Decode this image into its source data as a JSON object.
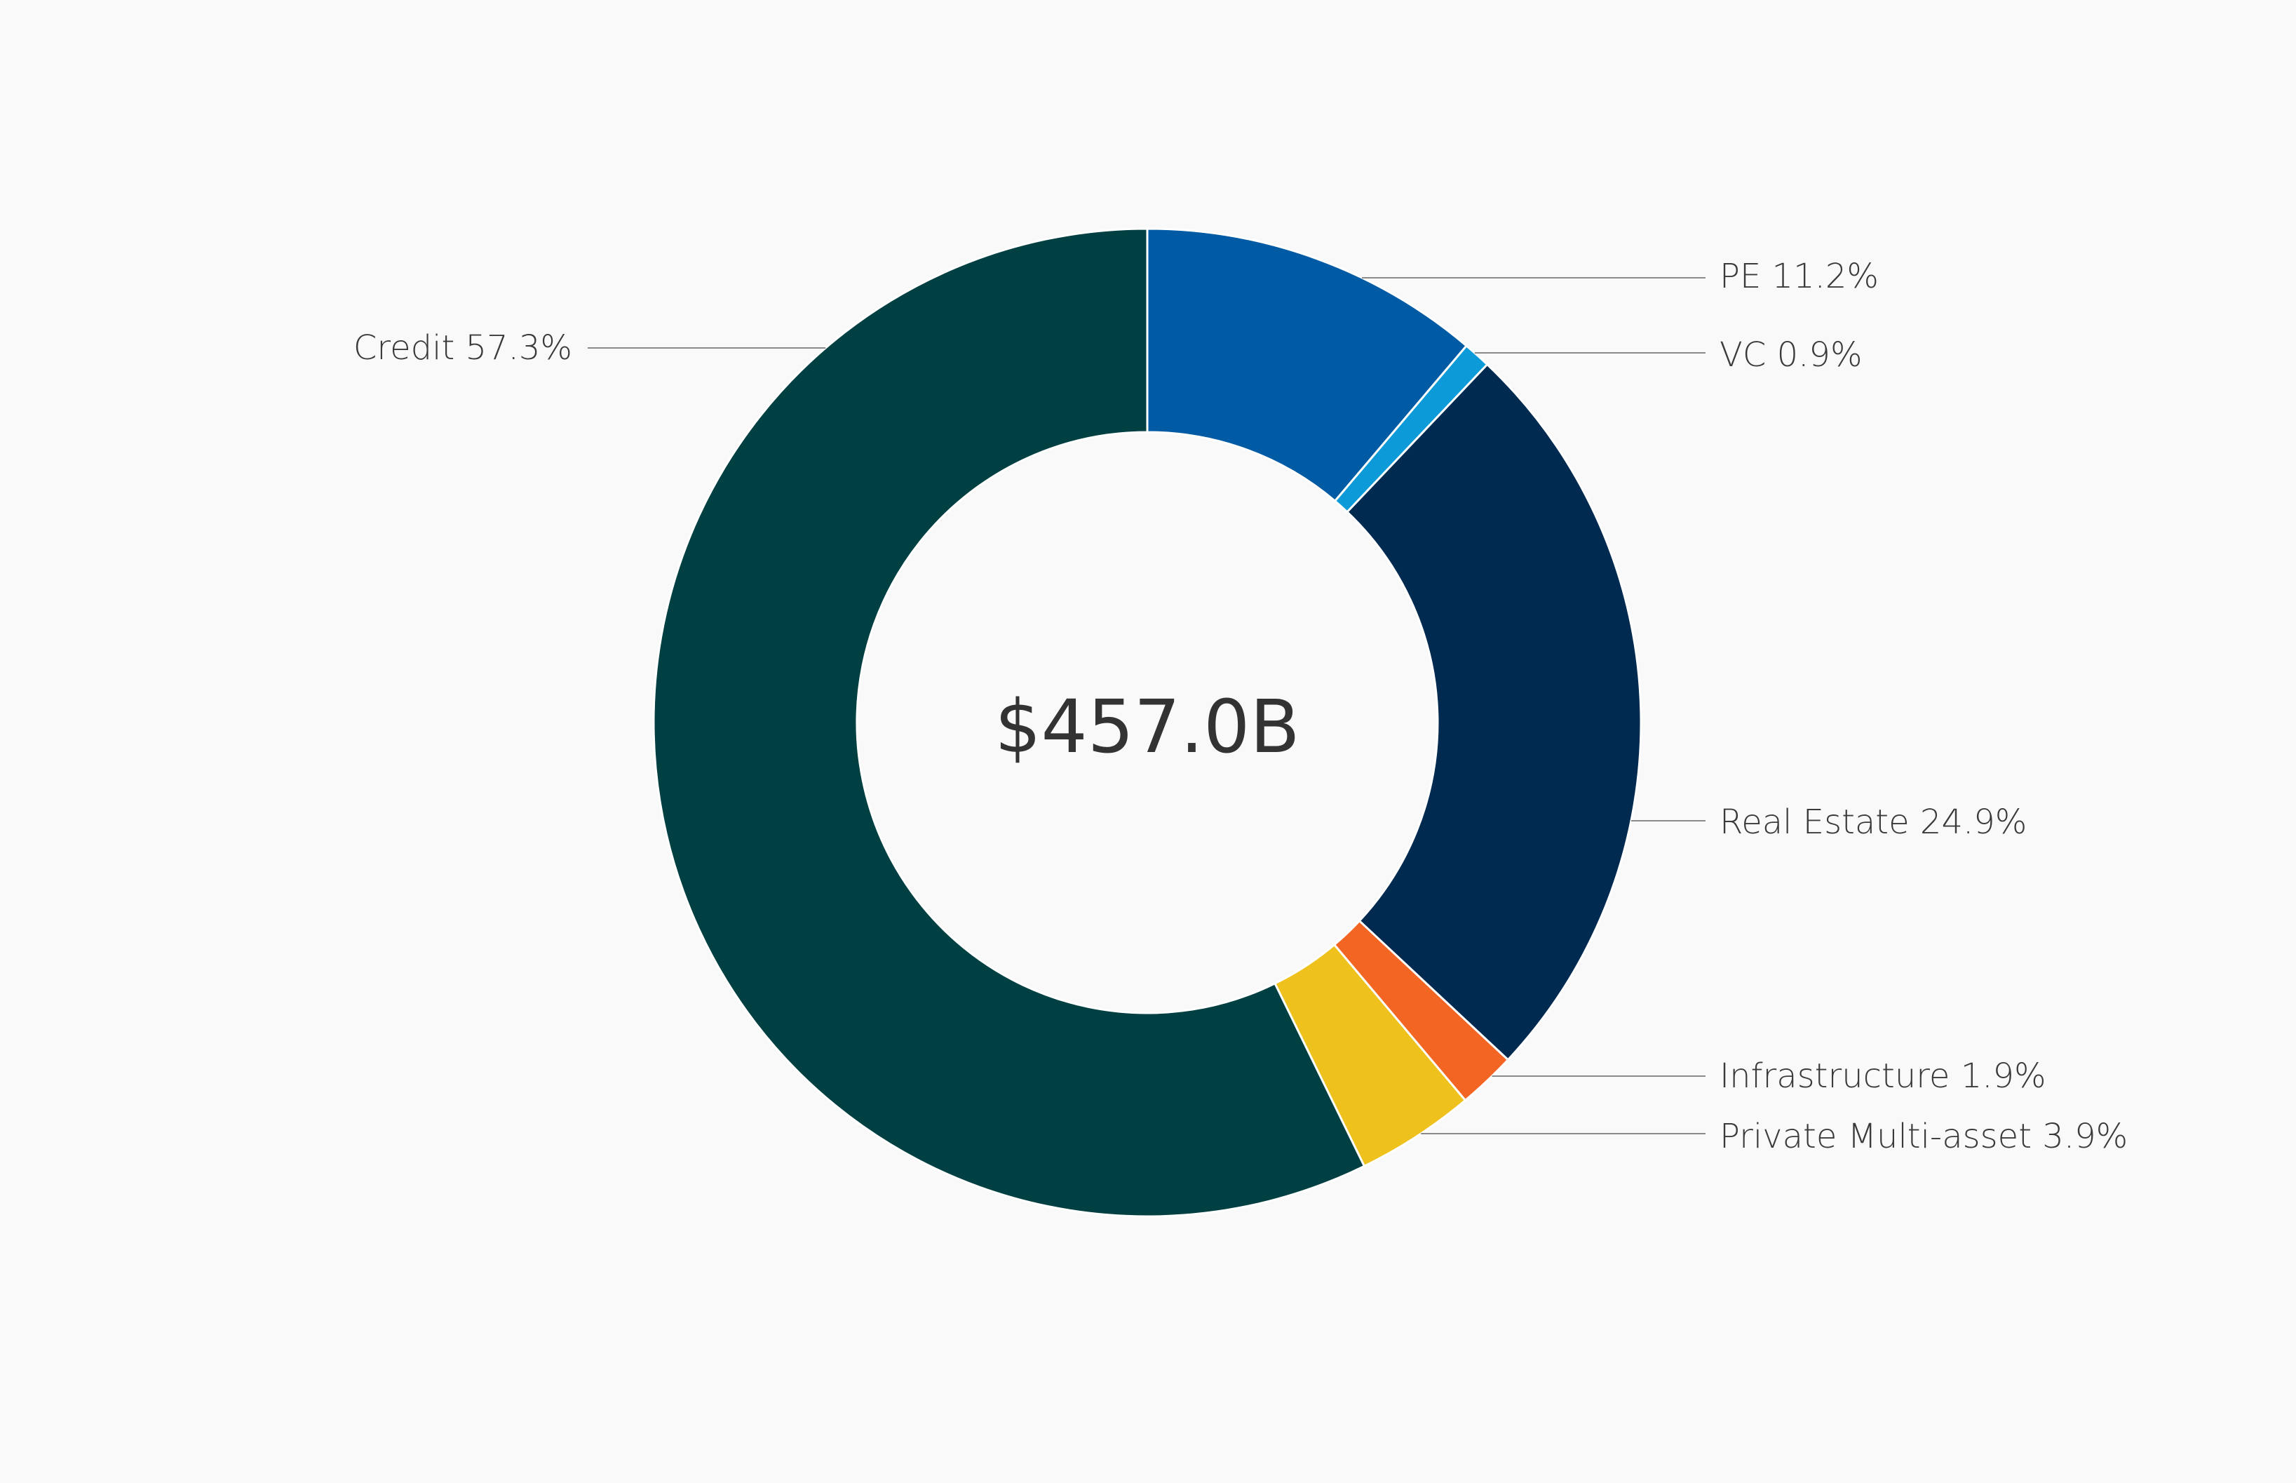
{
  "chart_data": {
    "type": "pie",
    "variant": "donut",
    "center_label": "$457.0B",
    "start_angle": "12 o'clock",
    "direction": "clockwise",
    "slices": [
      {
        "name": "PE",
        "label": "PE 11.2%",
        "value": 11.2,
        "color": "#005ba4"
      },
      {
        "name": "VC",
        "label": "VC 0.9%",
        "value": 0.9,
        "color": "#0c9ad9"
      },
      {
        "name": "Real Estate",
        "label": "Real Estate 24.9%",
        "value": 24.9,
        "color": "#002a50"
      },
      {
        "name": "Infrastructure",
        "label": "Infrastructure 1.9%",
        "value": 1.9,
        "color": "#f26522"
      },
      {
        "name": "Private Multi-asset",
        "label": "Private Multi-asset 3.9%",
        "value": 3.9,
        "color": "#eec11d"
      },
      {
        "name": "Credit",
        "label": "Credit 57.3%",
        "value": 57.3,
        "color": "#003f42"
      }
    ],
    "colors": {
      "background": "#f9f9f9",
      "leader_line": "#8a8a8a",
      "text": "#3a3a3a"
    }
  }
}
